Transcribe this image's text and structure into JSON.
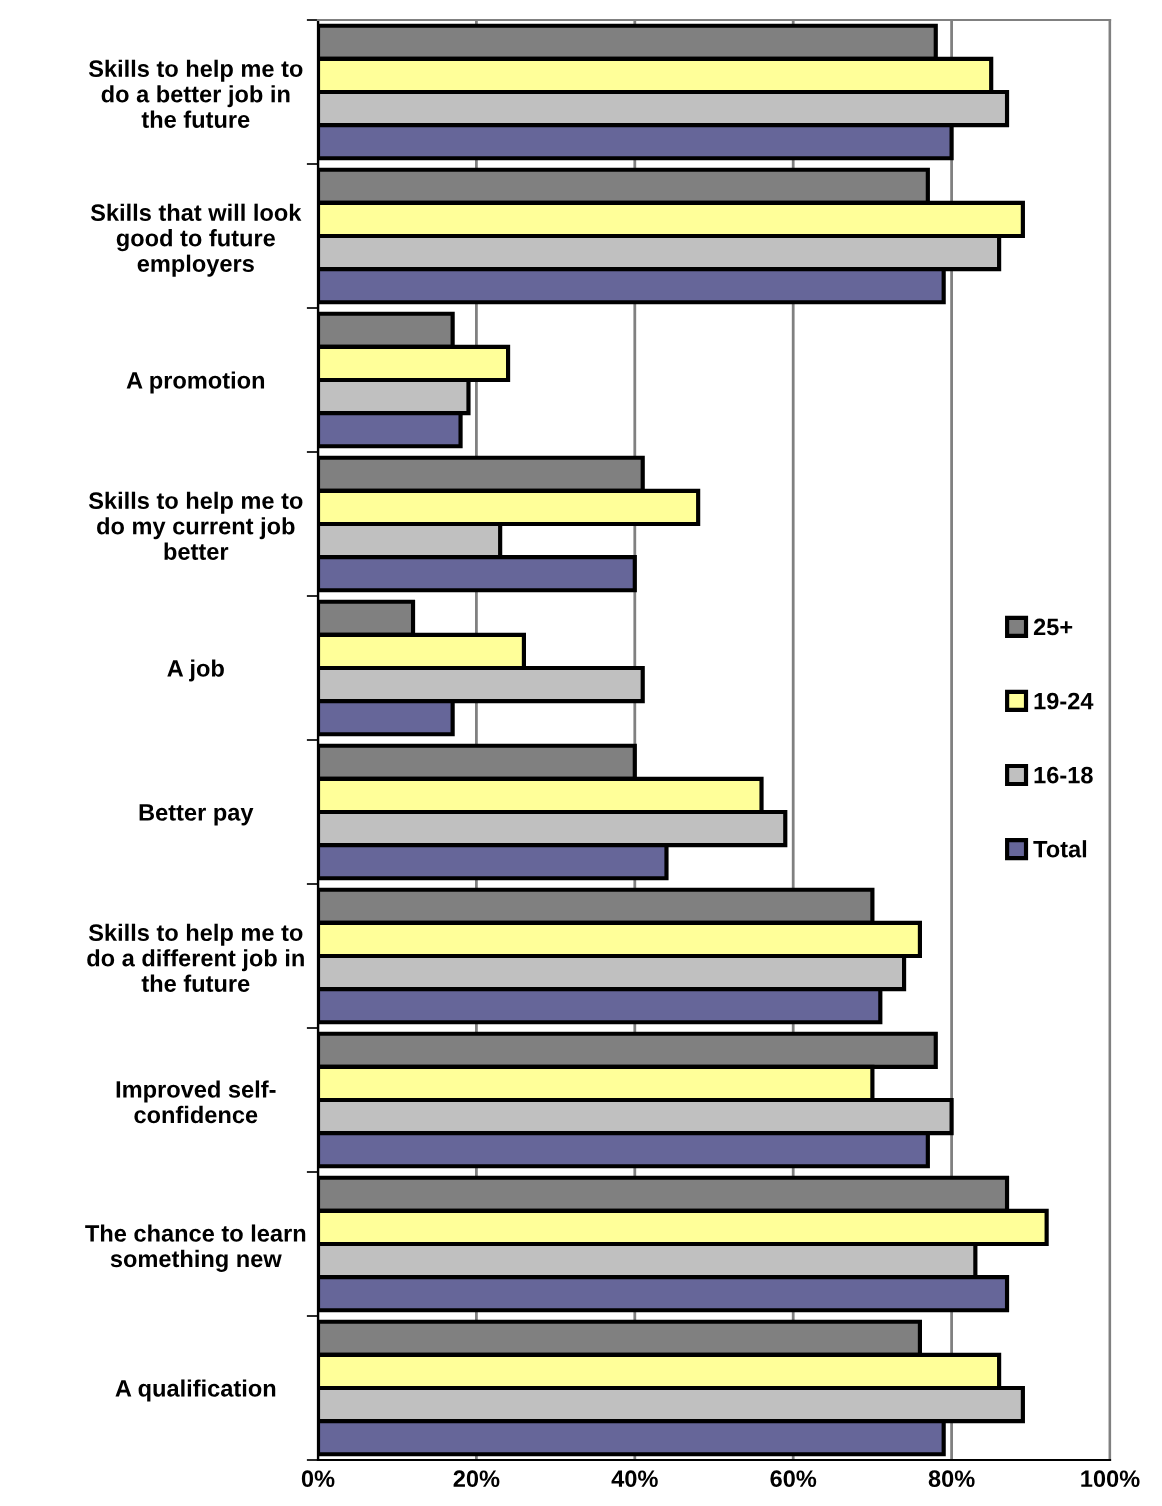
{
  "chart_data": {
    "type": "bar",
    "orientation": "horizontal",
    "categories": [
      "Skills to help me to\ndo a better job in\nthe future",
      "Skills that will look\ngood to future\nemployers",
      "A promotion",
      "Skills to help me to\ndo my current job\nbetter",
      "A job",
      "Better pay",
      "Skills to help me to\ndo a different job in\nthe future",
      "Improved self-\nconfidence",
      "The chance to learn\nsomething new",
      "A qualification"
    ],
    "series": [
      {
        "name": "25+",
        "color": "#808080",
        "values": [
          78,
          77,
          17,
          41,
          12,
          40,
          70,
          78,
          87,
          76
        ]
      },
      {
        "name": "19-24",
        "color": "#ffff99",
        "values": [
          85,
          89,
          24,
          48,
          26,
          56,
          76,
          70,
          92,
          86
        ]
      },
      {
        "name": "16-18",
        "color": "#c0c0c0",
        "values": [
          87,
          86,
          19,
          23,
          41,
          59,
          74,
          80,
          83,
          89
        ]
      },
      {
        "name": "Total",
        "color": "#666699",
        "values": [
          80,
          79,
          18,
          40,
          17,
          44,
          71,
          77,
          87,
          79
        ]
      }
    ],
    "xlim": [
      0,
      100
    ],
    "xticks": [
      {
        "value": 0,
        "label": "0%"
      },
      {
        "value": 20,
        "label": "20%"
      },
      {
        "value": 40,
        "label": "40%"
      },
      {
        "value": 60,
        "label": "60%"
      },
      {
        "value": 80,
        "label": "80%"
      },
      {
        "value": 100,
        "label": "100%"
      }
    ],
    "grid": "x",
    "legend": "right"
  }
}
